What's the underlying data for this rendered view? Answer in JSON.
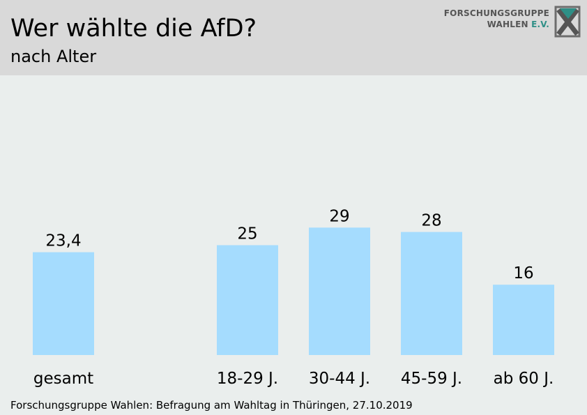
{
  "header": {
    "title": "Wer wählte die AfD?",
    "subtitle": "nach Alter"
  },
  "logo": {
    "line1": "FORSCHUNGSGRUPPE",
    "line2_main": "WAHLEN ",
    "line2_accent": "E.V."
  },
  "source": "Forschungsgruppe Wahlen: Befragung am Wahltag in Thüringen, 27.10.2019",
  "colors": {
    "bar": "#a5dcfe",
    "background": "#eaeeed",
    "header": "#d9d9d9",
    "logo_accent": "#2e8f86"
  },
  "chart_data": {
    "type": "bar",
    "categories": [
      "gesamt",
      "18-29 J.",
      "30-44 J.",
      "45-59 J.",
      "ab 60 J."
    ],
    "values": [
      23.4,
      25,
      29,
      28,
      16
    ],
    "value_labels": [
      "23,4",
      "25",
      "29",
      "28",
      "16"
    ],
    "title": "Wer wählte die AfD?",
    "subtitle": "nach Alter",
    "xlabel": "",
    "ylabel": "",
    "grid": false,
    "legend": "none"
  }
}
